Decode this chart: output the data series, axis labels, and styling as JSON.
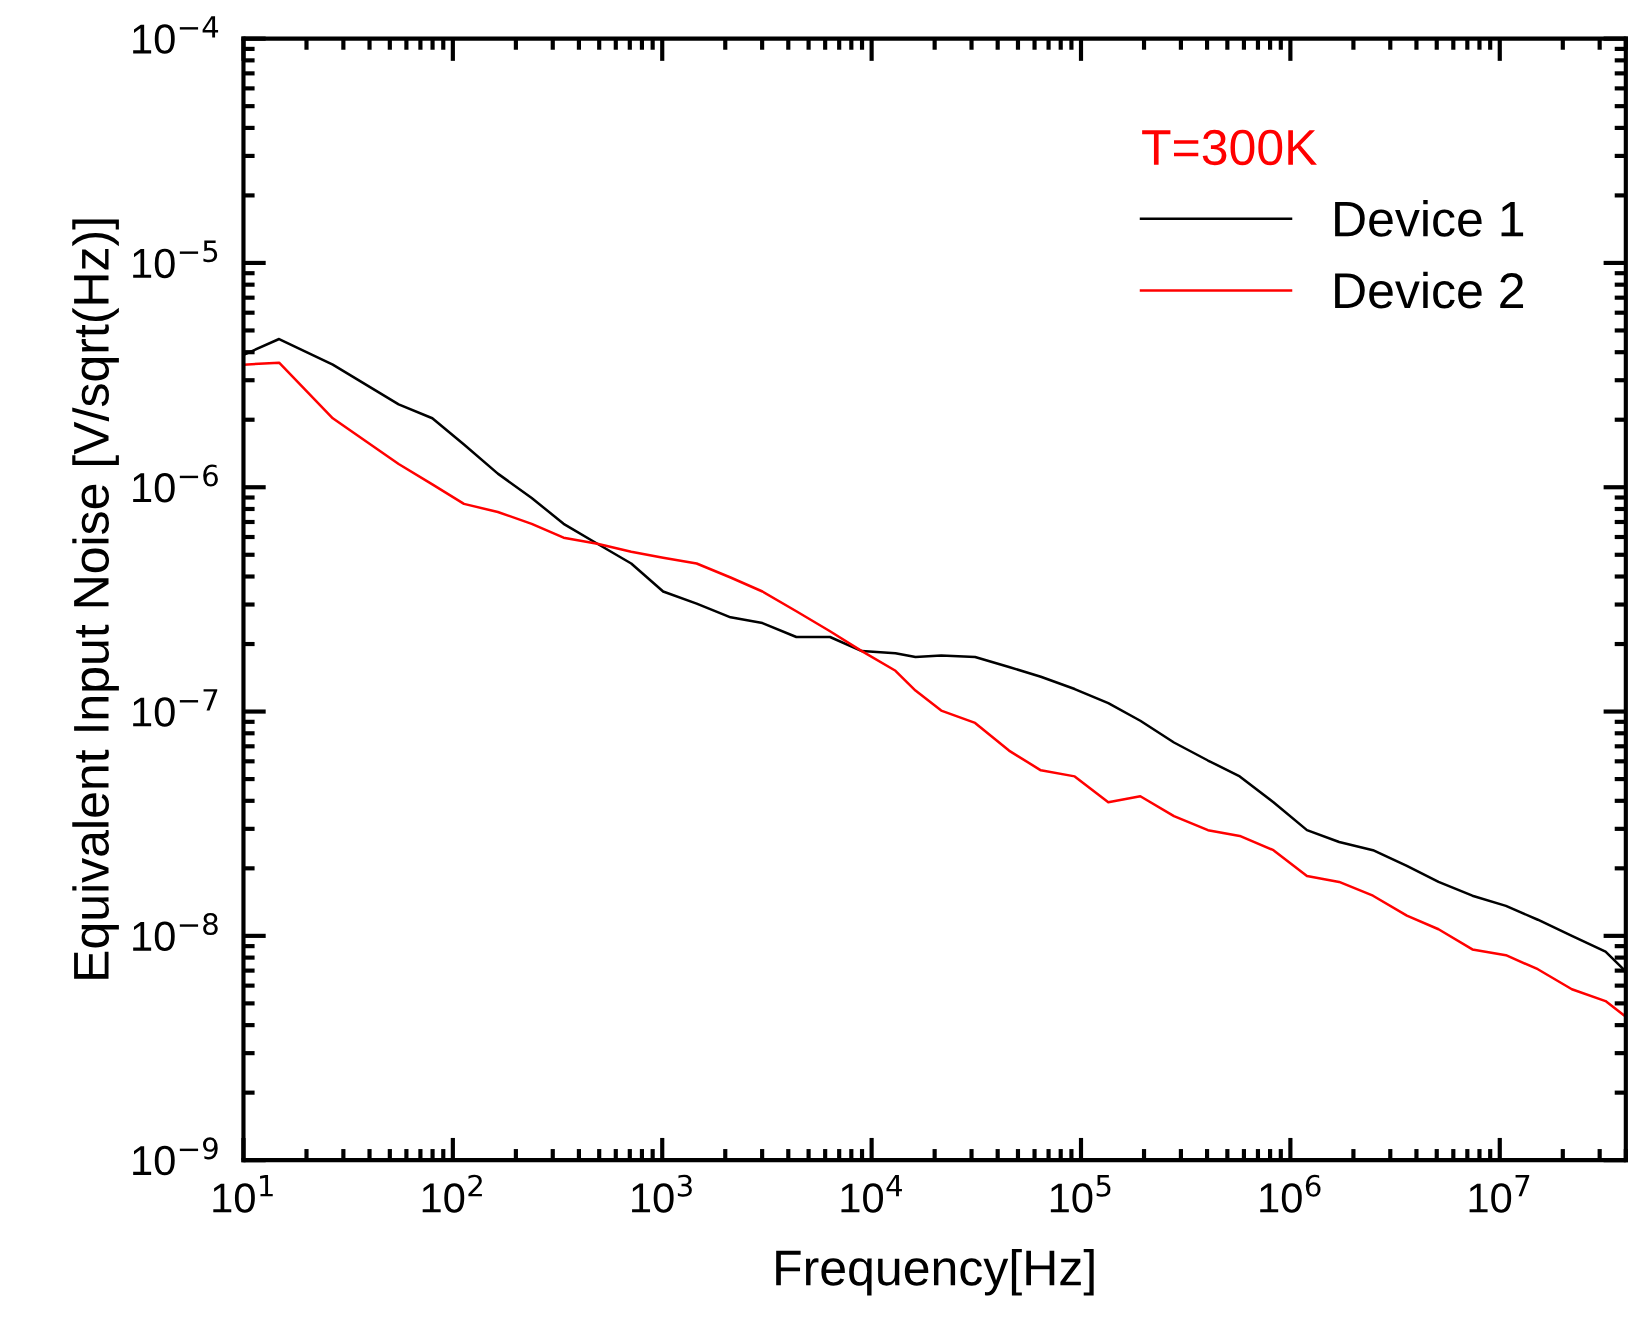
{
  "chart_data": {
    "type": "line",
    "xlabel": "Frequency[Hz]",
    "ylabel": "Equivalent Input Noise [V/sqrt(Hz)]",
    "legend_title": "T=300K",
    "legend": "top right",
    "log": "xy",
    "grid": false,
    "line_style": "solid",
    "x": [
      10,
      14.8,
      26.7,
      55.1,
      79.8,
      113,
      164,
      238,
      338,
      490,
      711,
      1010,
      1460,
      2120,
      3010,
      4370,
      6330,
      8980,
      13000,
      16200,
      21500,
      31200,
      45300,
      64300,
      93300,
      135000,
      192000,
      278000,
      404000,
      573000,
      830000,
      1200000,
      1710000,
      2480000,
      3600000,
      5100000,
      7400000,
      10700000,
      15200000,
      22100000,
      32000000,
      39000000
    ],
    "xlim": [
      10,
      40000000
    ],
    "ylim": [
      1e-09,
      0.0001
    ],
    "xticks": [
      {
        "value": 10,
        "label": "10$^{1}$"
      },
      {
        "value": 100,
        "label": "10$^{2}$"
      },
      {
        "value": 1000,
        "label": "10$^{3}$"
      },
      {
        "value": 10000,
        "label": "10$^{4}$"
      },
      {
        "value": 100000,
        "label": "10$^{5}$"
      },
      {
        "value": 1000000,
        "label": "10$^{6}$"
      },
      {
        "value": 10000000,
        "label": "10$^{7}$"
      }
    ],
    "yticks": [
      {
        "value": 1e-09,
        "label": "10$^{−9}$"
      },
      {
        "value": 1e-08,
        "label": "10$^{−8}$"
      },
      {
        "value": 1e-07,
        "label": "10$^{−7}$"
      },
      {
        "value": 1e-06,
        "label": "10$^{−6}$"
      },
      {
        "value": 1e-05,
        "label": "10$^{−5}$"
      },
      {
        "value": 0.0001,
        "label": "10$^{−4}$"
      }
    ],
    "series": [
      {
        "name": "Device 1",
        "color": "#000000",
        "values": [
          3.89e-06,
          4.58e-06,
          3.52e-06,
          2.34e-06,
          2.03e-06,
          1.55e-06,
          1.15e-06,
          8.96e-07,
          6.87e-07,
          5.6e-07,
          4.57e-07,
          3.43e-07,
          3.03e-07,
          2.63e-07,
          2.48e-07,
          2.15e-07,
          2.15e-07,
          1.86e-07,
          1.82e-07,
          1.75e-07,
          1.78e-07,
          1.75e-07,
          1.58e-07,
          1.43e-07,
          1.26e-07,
          1.09e-07,
          9.1e-08,
          7.28e-08,
          6.05e-08,
          5.14e-08,
          3.94e-08,
          2.96e-08,
          2.62e-08,
          2.41e-08,
          2.05e-08,
          1.74e-08,
          1.51e-08,
          1.36e-08,
          1.18e-08,
          1e-08,
          8.5e-09,
          7.1e-09
        ]
      },
      {
        "name": "Device 2",
        "color": "#ff0000",
        "values": [
          3.52e-06,
          3.59e-06,
          2.03e-06,
          1.27e-06,
          1.03e-06,
          8.43e-07,
          7.76e-07,
          6.87e-07,
          5.96e-07,
          5.6e-07,
          5.16e-07,
          4.85e-07,
          4.57e-07,
          3.96e-07,
          3.43e-07,
          2.8e-07,
          2.28e-07,
          1.86e-07,
          1.52e-07,
          1.24e-07,
          1.01e-07,
          8.9e-08,
          6.7e-08,
          5.47e-08,
          5.14e-08,
          3.94e-08,
          4.19e-08,
          3.42e-08,
          2.96e-08,
          2.79e-08,
          2.41e-08,
          1.85e-08,
          1.74e-08,
          1.51e-08,
          1.23e-08,
          1.07e-08,
          8.7e-09,
          8.2e-09,
          7.1e-09,
          5.78e-09,
          5.12e-09,
          4.44e-09
        ]
      }
    ]
  }
}
